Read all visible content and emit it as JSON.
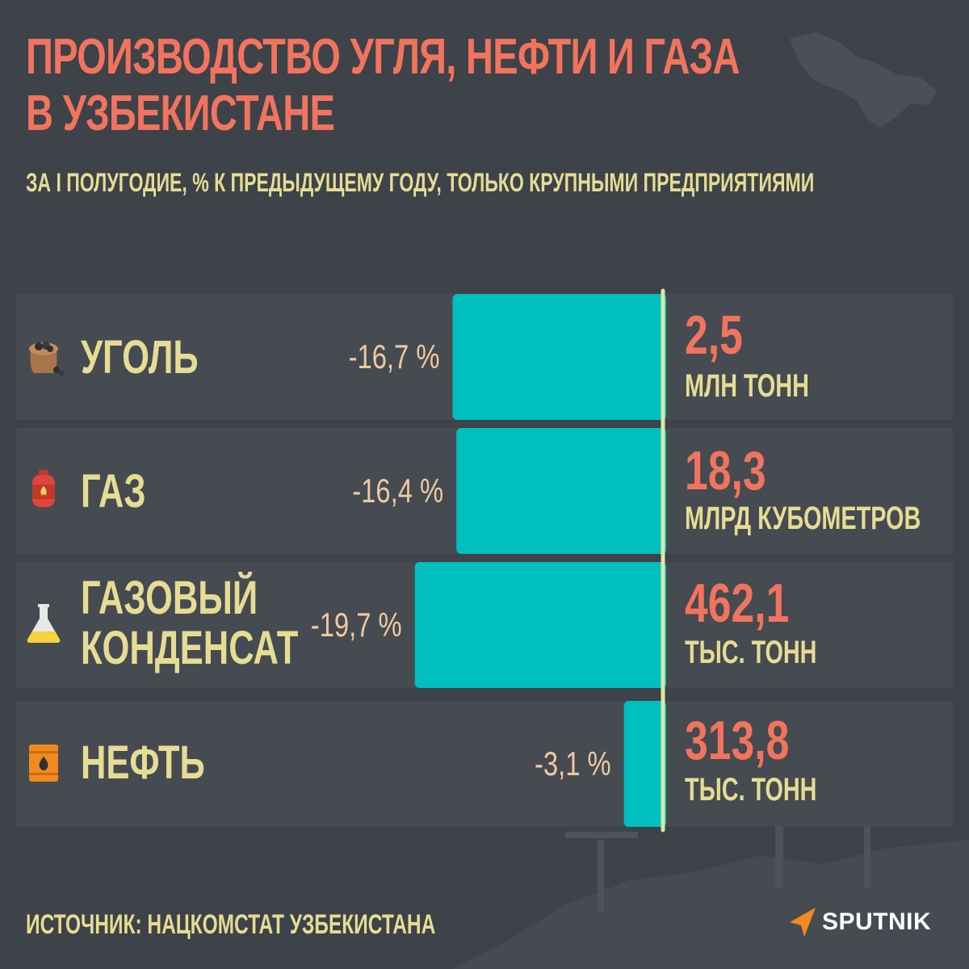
{
  "title": {
    "line1": "ПРОИЗВОДСТВО УГЛЯ, НЕФТИ И ГАЗА",
    "line2": "В УЗБЕКИСТАНЕ"
  },
  "subtitle": "ЗА I ПОЛУГОДИЕ, % К ПРЕДЫДУЩЕМУ ГОДУ, ТОЛЬКО КРУПНЫМИ ПРЕДПРИЯТИЯМИ",
  "colors": {
    "background": "#3d4349",
    "title": "#f2735e",
    "label": "#e6dc93",
    "bar": "#00bfbf",
    "axis": "#d8e8a8",
    "percent_text": "#f0c9a0"
  },
  "rows": [
    {
      "label_lines": [
        "УГОЛЬ"
      ],
      "icon": "coal-sack-icon",
      "value": "2,5",
      "unit": "МЛН ТОНН"
    },
    {
      "label_lines": [
        "ГАЗ"
      ],
      "icon": "gas-cylinder-icon",
      "value": "18,3",
      "unit": "МЛРД КУБОМЕТРОВ"
    },
    {
      "label_lines": [
        "ГАЗОВЫЙ",
        "КОНДЕНСАТ"
      ],
      "icon": "flask-icon",
      "value": "462,1",
      "unit": "ТЫС. ТОНН"
    },
    {
      "label_lines": [
        "НЕФТЬ"
      ],
      "icon": "oil-barrel-icon",
      "value": "313,8",
      "unit": "ТЫС. ТОНН"
    }
  ],
  "chart_data": {
    "type": "bar",
    "orientation": "horizontal",
    "categories": [
      "УГОЛЬ",
      "ГАЗ",
      "ГАЗОВЫЙ КОНДЕНСАТ",
      "НЕФТЬ"
    ],
    "values": [
      -16.7,
      -16.4,
      -19.7,
      -3.1
    ],
    "data_labels": [
      "-16,7 %",
      "-16,4 %",
      "-19,7 %",
      "-3,1 %"
    ],
    "unit": "%",
    "grid": false
  },
  "source": "ИСТОЧНИК: НАЦКОМСТАТ УЗБЕКИСТАНА",
  "brand": "SPUTNIK"
}
